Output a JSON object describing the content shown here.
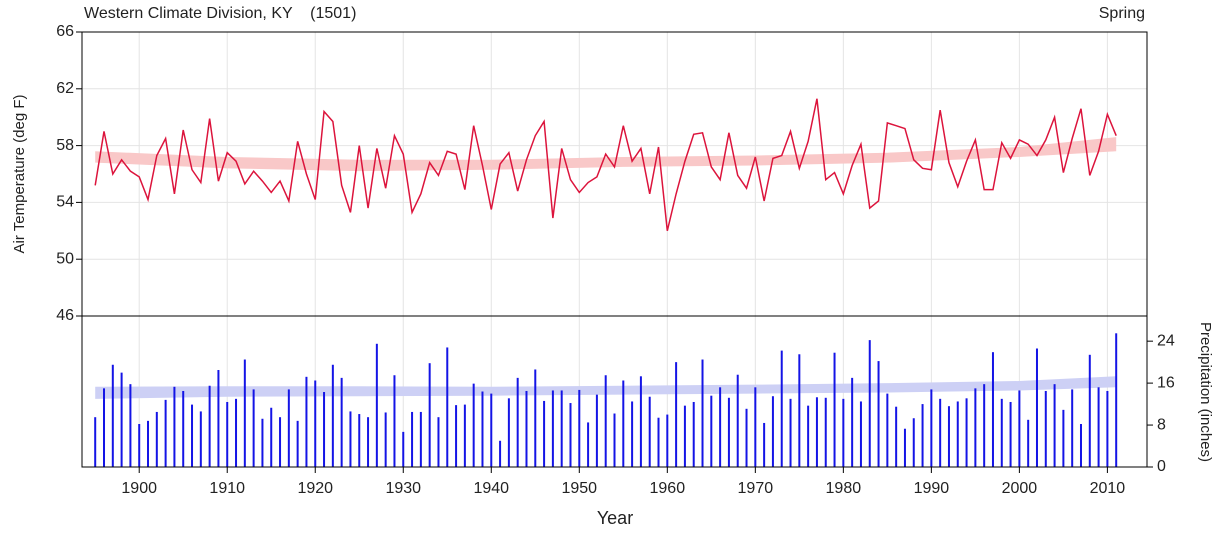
{
  "chart_data": [
    {
      "type": "line",
      "title": "Western Climate Division, KY    (1501)",
      "subtitle": "Spring",
      "ylabel": "Air Temperature (deg F)",
      "x": [
        1895,
        1896,
        1897,
        1898,
        1899,
        1900,
        1901,
        1902,
        1903,
        1904,
        1905,
        1906,
        1907,
        1908,
        1909,
        1910,
        1911,
        1912,
        1913,
        1914,
        1915,
        1916,
        1917,
        1918,
        1919,
        1920,
        1921,
        1922,
        1923,
        1924,
        1925,
        1926,
        1927,
        1928,
        1929,
        1930,
        1931,
        1932,
        1933,
        1934,
        1935,
        1936,
        1937,
        1938,
        1939,
        1940,
        1941,
        1942,
        1943,
        1944,
        1945,
        1946,
        1947,
        1948,
        1949,
        1950,
        1951,
        1952,
        1953,
        1954,
        1955,
        1956,
        1957,
        1958,
        1959,
        1960,
        1961,
        1962,
        1963,
        1964,
        1965,
        1966,
        1967,
        1968,
        1969,
        1970,
        1971,
        1972,
        1973,
        1974,
        1975,
        1976,
        1977,
        1978,
        1979,
        1980,
        1981,
        1982,
        1983,
        1984,
        1985,
        1986,
        1987,
        1988,
        1989,
        1990,
        1991,
        1992,
        1993,
        1994,
        1995,
        1996,
        1997,
        1998,
        1999,
        2000,
        2001,
        2002,
        2003,
        2004,
        2005,
        2006,
        2007,
        2008,
        2009,
        2010,
        2011
      ],
      "values": [
        55.2,
        59.0,
        56.0,
        57.0,
        56.2,
        55.8,
        54.2,
        57.3,
        58.5,
        54.6,
        59.1,
        56.3,
        55.4,
        59.9,
        55.5,
        57.5,
        56.9,
        55.3,
        56.2,
        55.5,
        54.7,
        55.5,
        54.1,
        58.3,
        56.0,
        54.2,
        60.4,
        59.7,
        55.2,
        53.3,
        58.0,
        53.6,
        57.8,
        55.0,
        58.7,
        57.4,
        53.3,
        54.6,
        56.8,
        55.9,
        57.6,
        57.4,
        54.9,
        59.4,
        56.6,
        53.5,
        56.7,
        57.5,
        54.8,
        57.0,
        58.7,
        59.7,
        52.9,
        57.8,
        55.6,
        54.7,
        55.4,
        55.8,
        57.4,
        56.5,
        59.4,
        56.9,
        57.8,
        54.6,
        57.9,
        52.0,
        54.6,
        56.9,
        58.8,
        58.9,
        56.5,
        55.6,
        58.9,
        55.9,
        55.0,
        57.2,
        54.1,
        57.1,
        57.3,
        59.0,
        56.4,
        58.3,
        61.3,
        55.6,
        56.1,
        54.6,
        56.6,
        58.1,
        53.6,
        54.1,
        59.6,
        59.4,
        59.2,
        57.0,
        56.4,
        56.3,
        60.5,
        56.8,
        55.1,
        56.9,
        58.4,
        54.9,
        54.9,
        58.2,
        57.1,
        58.4,
        58.1,
        57.3,
        58.4,
        60.0,
        56.1,
        58.5,
        60.6,
        55.9,
        57.6,
        60.2,
        58.7
      ],
      "color": "#dc143c",
      "trend_x": [
        1895,
        1910,
        1925,
        1940,
        1955,
        1970,
        1985,
        2000,
        2011
      ],
      "trend_low": [
        56.8,
        56.4,
        56.2,
        56.3,
        56.5,
        56.6,
        56.8,
        57.2,
        57.6
      ],
      "trend_high": [
        57.6,
        57.2,
        57.0,
        57.0,
        57.2,
        57.3,
        57.5,
        57.9,
        58.6
      ],
      "trend_color": "#f9c8c8",
      "xlim": [
        1893.5,
        2014.5
      ],
      "ylim": [
        46,
        66
      ],
      "yticks": [
        46,
        50,
        54,
        58,
        62,
        66
      ],
      "grid": true
    },
    {
      "type": "bar",
      "ylabel": "Precipitation (inches)",
      "xlabel": "Year",
      "x": [
        1895,
        1896,
        1897,
        1898,
        1899,
        1900,
        1901,
        1902,
        1903,
        1904,
        1905,
        1906,
        1907,
        1908,
        1909,
        1910,
        1911,
        1912,
        1913,
        1914,
        1915,
        1916,
        1917,
        1918,
        1919,
        1920,
        1921,
        1922,
        1923,
        1924,
        1925,
        1926,
        1927,
        1928,
        1929,
        1930,
        1931,
        1932,
        1933,
        1934,
        1935,
        1936,
        1937,
        1938,
        1939,
        1940,
        1941,
        1942,
        1943,
        1944,
        1945,
        1946,
        1947,
        1948,
        1949,
        1950,
        1951,
        1952,
        1953,
        1954,
        1955,
        1956,
        1957,
        1958,
        1959,
        1960,
        1961,
        1962,
        1963,
        1964,
        1965,
        1966,
        1967,
        1968,
        1969,
        1970,
        1971,
        1972,
        1973,
        1974,
        1975,
        1976,
        1977,
        1978,
        1979,
        1980,
        1981,
        1982,
        1983,
        1984,
        1985,
        1986,
        1987,
        1988,
        1989,
        1990,
        1991,
        1992,
        1993,
        1994,
        1995,
        1996,
        1997,
        1998,
        1999,
        2000,
        2001,
        2002,
        2003,
        2004,
        2005,
        2006,
        2007,
        2008,
        2009,
        2010,
        2011
      ],
      "values": [
        9.5,
        15,
        19.5,
        18,
        15.8,
        8.2,
        8.8,
        10.5,
        12.8,
        15.3,
        14.5,
        11.9,
        10.6,
        15.5,
        18.5,
        12.4,
        13,
        20.5,
        14.8,
        9.2,
        11.3,
        9.5,
        14.8,
        8.8,
        17.2,
        16.5,
        14.3,
        19.5,
        17,
        10.6,
        10.1,
        9.5,
        23.5,
        10.4,
        17.5,
        6.7,
        10.5,
        10.5,
        19.8,
        9.5,
        22.8,
        11.8,
        11.9,
        15.9,
        14.4,
        14,
        5,
        13.1,
        17,
        14.5,
        18.6,
        12.6,
        14.6,
        14.6,
        12.2,
        14.7,
        8.5,
        13.8,
        17.5,
        10.2,
        16.5,
        12.5,
        17.3,
        13.4,
        9.4,
        10,
        20,
        11.7,
        12.4,
        20.5,
        13.6,
        15.2,
        13.2,
        17.6,
        11.1,
        15.2,
        8.4,
        13.5,
        22.2,
        13,
        21.5,
        11.7,
        13.3,
        13.2,
        21.8,
        13,
        17,
        12.5,
        24.2,
        20.2,
        14,
        11.5,
        7.3,
        9.3,
        12,
        14.8,
        13,
        11.6,
        12.5,
        13.1,
        15,
        15.8,
        21.9,
        13,
        12.4,
        14.6,
        9,
        22.6,
        14.5,
        15.8,
        10.9,
        14.8,
        8.2,
        21.4,
        15.2,
        14.5,
        25.5
      ],
      "color": "#1414e6",
      "trend_x": [
        1895,
        1910,
        1925,
        1940,
        1955,
        1970,
        1985,
        2000,
        2011
      ],
      "trend_low": [
        13.0,
        13.4,
        13.5,
        13.6,
        13.8,
        14.0,
        14.2,
        14.6,
        15.2
      ],
      "trend_high": [
        15.3,
        15.4,
        15.4,
        15.3,
        15.5,
        15.7,
        16.0,
        16.4,
        17.3
      ],
      "trend_color": "#cdd0f5",
      "xlim": [
        1893.5,
        2014.5
      ],
      "ylim": [
        0,
        28.8
      ],
      "yticks": [
        0,
        8,
        16,
        24
      ],
      "xticks": [
        1900,
        1910,
        1920,
        1930,
        1940,
        1950,
        1960,
        1970,
        1980,
        1990,
        2000,
        2010
      ],
      "grid": true
    }
  ]
}
